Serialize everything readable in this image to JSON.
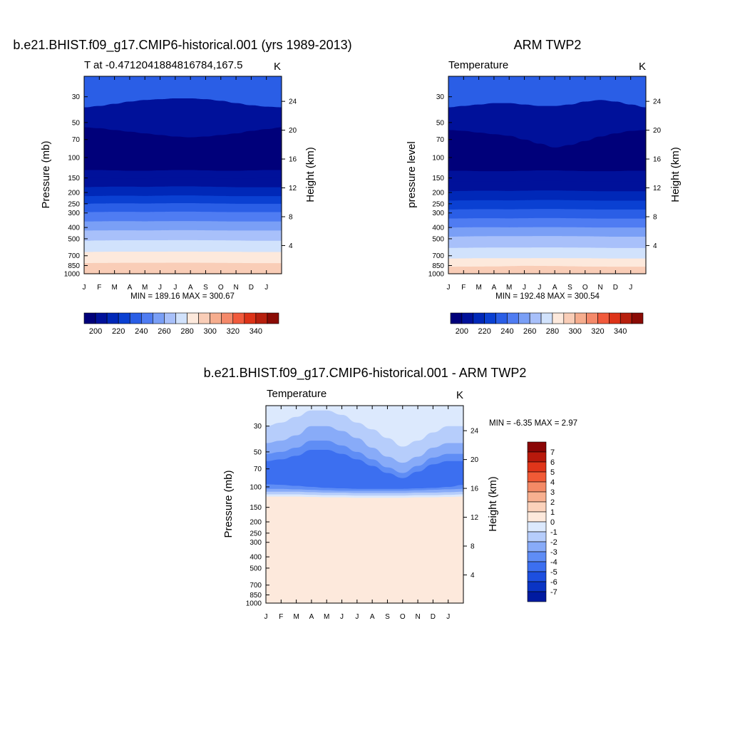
{
  "figure_title": "",
  "chart_data": [
    {
      "id": "model",
      "type": "contour",
      "title": "b.e21.BHIST.f09_g17.CMIP6-historical.001 (yrs 1989-2013)",
      "left_subtitle": "T at -0.4712041884816784,167.5",
      "right_subtitle": "K",
      "ylabel": "Pressure (mb)",
      "y2label": "Height (km)",
      "x_tick_labels": [
        "J",
        "F",
        "M",
        "A",
        "M",
        "J",
        "J",
        "A",
        "S",
        "O",
        "N",
        "D",
        "J"
      ],
      "y_ticks": [
        30,
        50,
        70,
        100,
        150,
        200,
        250,
        300,
        400,
        500,
        700,
        850,
        1000
      ],
      "y2_ticks": [
        24,
        20,
        16,
        12,
        8,
        4
      ],
      "ylim": [
        1000,
        20
      ],
      "stats": "MIN = 189.16 MAX = 300.67",
      "levels": [
        195,
        200,
        205,
        210,
        215,
        220,
        225,
        230,
        235,
        240,
        245,
        250,
        255,
        260,
        265,
        270,
        275,
        280,
        285,
        290,
        295,
        300,
        305,
        310,
        315,
        320,
        325,
        330,
        335,
        340,
        345
      ],
      "colorbar_labels": [
        "200",
        "220",
        "240",
        "260",
        "280",
        "300",
        "320",
        "340"
      ],
      "boundaries": [
        {
          "value": 235,
          "p": [
            24,
            24,
            23,
            22,
            22,
            21.5,
            21,
            21,
            21.5,
            22,
            22.5,
            23,
            23.5,
            24
          ]
        },
        {
          "value": 200,
          "p": [
            37,
            36,
            34.5,
            33,
            32,
            31.5,
            31,
            31,
            31.5,
            32.5,
            34,
            35.5,
            36.5,
            37
          ]
        },
        {
          "value": 195,
          "p": [
            55,
            56,
            58,
            60,
            62,
            64,
            66,
            67,
            66,
            64,
            62,
            59,
            57,
            55
          ]
        },
        {
          "value": 200,
          "p": [
            128,
            128,
            129,
            130,
            130,
            129,
            128,
            128,
            129,
            130,
            130,
            129,
            128,
            128
          ]
        },
        {
          "value": 205,
          "p": [
            150,
            150,
            151,
            152,
            152,
            150,
            149,
            149,
            150,
            151,
            152,
            151,
            150,
            150
          ]
        },
        {
          "value": 215,
          "p": [
            180,
            179,
            178,
            178,
            179,
            178,
            177,
            177,
            178,
            179,
            180,
            180,
            180,
            180
          ]
        },
        {
          "value": 225,
          "p": [
            215,
            214,
            213,
            213,
            214,
            213,
            212,
            212,
            213,
            214,
            215,
            215,
            215,
            215
          ]
        },
        {
          "value": 235,
          "p": [
            250,
            249,
            248,
            248,
            249,
            248,
            247,
            247,
            248,
            249,
            250,
            250,
            250,
            250
          ]
        },
        {
          "value": 245,
          "p": [
            295,
            294,
            293,
            293,
            294,
            293,
            292,
            292,
            293,
            294,
            295,
            295,
            295,
            295
          ]
        },
        {
          "value": 255,
          "p": [
            355,
            354,
            353,
            353,
            354,
            353,
            352,
            352,
            353,
            354,
            355,
            355,
            355,
            355
          ]
        },
        {
          "value": 265,
          "p": [
            425,
            424,
            423,
            423,
            424,
            423,
            422,
            422,
            423,
            424,
            425,
            425,
            425,
            425
          ]
        },
        {
          "value": 275,
          "p": [
            520,
            518,
            516,
            515,
            515,
            515,
            514,
            514,
            515,
            516,
            518,
            520,
            520,
            520
          ]
        },
        {
          "value": 285,
          "p": [
            650,
            648,
            646,
            645,
            645,
            645,
            644,
            644,
            645,
            646,
            648,
            650,
            650,
            650
          ]
        },
        {
          "value": 295,
          "p": [
            810,
            808,
            806,
            805,
            805,
            805,
            804,
            804,
            805,
            806,
            808,
            810,
            810,
            810
          ]
        },
        {
          "value": 300,
          "p": [
            990,
            990,
            990,
            990,
            990,
            990,
            990,
            990,
            990,
            990,
            990,
            990,
            990,
            990
          ]
        }
      ]
    },
    {
      "id": "obs",
      "type": "contour",
      "title": "ARM TWP2",
      "left_subtitle": "Temperature",
      "right_subtitle": "K",
      "ylabel": "pressure level",
      "y2label": "Height (km)",
      "x_tick_labels": [
        "J",
        "F",
        "M",
        "A",
        "M",
        "J",
        "J",
        "A",
        "S",
        "O",
        "N",
        "D",
        "J"
      ],
      "y_ticks": [
        30,
        50,
        70,
        100,
        150,
        200,
        250,
        300,
        400,
        500,
        700,
        850,
        1000
      ],
      "y2_ticks": [
        24,
        20,
        16,
        12,
        8,
        4
      ],
      "ylim": [
        1000,
        20
      ],
      "stats": "MIN = 192.48 MAX = 300.54",
      "levels": [
        195,
        200,
        205,
        210,
        215,
        220,
        225,
        230,
        235,
        240,
        245,
        250,
        255,
        260,
        265,
        270,
        275,
        280,
        285,
        290,
        295,
        300,
        305,
        310,
        315,
        320,
        325,
        330,
        335,
        340,
        345
      ],
      "colorbar_labels": [
        "200",
        "220",
        "240",
        "260",
        "280",
        "300",
        "320",
        "340"
      ],
      "boundaries": [
        {
          "value": 235,
          "p": [
            23,
            23,
            22.5,
            22,
            22,
            21.5,
            21,
            21,
            21.5,
            22,
            22.5,
            23,
            23,
            23
          ]
        },
        {
          "value": 200,
          "p": [
            37,
            36,
            35,
            34,
            34,
            35,
            36,
            36,
            35,
            33,
            32,
            33,
            35,
            37
          ]
        },
        {
          "value": 195,
          "p": [
            58,
            59,
            61,
            63,
            65,
            70,
            76,
            82,
            78,
            72,
            66,
            62,
            59,
            58
          ]
        },
        {
          "value": 200,
          "p": [
            130,
            130,
            131,
            131,
            131,
            130,
            129,
            129,
            130,
            131,
            131,
            131,
            130,
            130
          ]
        },
        {
          "value": 205,
          "p": [
            160,
            160,
            161,
            161,
            161,
            160,
            159,
            159,
            160,
            161,
            161,
            161,
            160,
            160
          ]
        },
        {
          "value": 215,
          "p": [
            195,
            194,
            193,
            193,
            194,
            193,
            192,
            192,
            193,
            194,
            195,
            195,
            195,
            195
          ]
        },
        {
          "value": 225,
          "p": [
            235,
            234,
            233,
            233,
            234,
            233,
            232,
            232,
            233,
            234,
            235,
            235,
            235,
            235
          ]
        },
        {
          "value": 235,
          "p": [
            280,
            279,
            278,
            278,
            279,
            278,
            277,
            277,
            278,
            279,
            280,
            280,
            280,
            280
          ]
        },
        {
          "value": 245,
          "p": [
            335,
            334,
            333,
            333,
            334,
            333,
            332,
            332,
            333,
            334,
            335,
            335,
            335,
            335
          ]
        },
        {
          "value": 255,
          "p": [
            400,
            399,
            398,
            398,
            399,
            398,
            397,
            397,
            398,
            399,
            400,
            400,
            400,
            400
          ]
        },
        {
          "value": 265,
          "p": [
            480,
            478,
            476,
            475,
            475,
            475,
            474,
            474,
            475,
            476,
            478,
            480,
            480,
            480
          ]
        },
        {
          "value": 275,
          "p": [
            600,
            598,
            596,
            595,
            595,
            595,
            594,
            594,
            595,
            596,
            598,
            600,
            600,
            600
          ]
        },
        {
          "value": 285,
          "p": [
            740,
            738,
            736,
            735,
            735,
            735,
            734,
            734,
            735,
            736,
            738,
            740,
            740,
            740
          ]
        },
        {
          "value": 290,
          "p": [
            870,
            868,
            866,
            865,
            860,
            855,
            856,
            858,
            862,
            866,
            868,
            870,
            870,
            870
          ]
        }
      ]
    },
    {
      "id": "diff",
      "type": "contour",
      "title": "b.e21.BHIST.f09_g17.CMIP6-historical.001 - ARM TWP2",
      "left_subtitle": "Temperature",
      "right_subtitle": "K",
      "ylabel": "Pressure (mb)",
      "y2label": "Height (km)",
      "x_tick_labels": [
        "J",
        "F",
        "M",
        "A",
        "M",
        "J",
        "J",
        "A",
        "S",
        "O",
        "N",
        "D",
        "J"
      ],
      "y_ticks": [
        30,
        50,
        70,
        100,
        150,
        200,
        250,
        300,
        400,
        500,
        700,
        850,
        1000
      ],
      "y2_ticks": [
        24,
        20,
        16,
        12,
        8,
        4
      ],
      "ylim": [
        1000,
        20
      ],
      "stats": "MIN =  -6.35 MAX =   2.97",
      "levels": [
        -7.5,
        -6.5,
        -5.5,
        -4.5,
        -3.5,
        -2.5,
        -1.5,
        -0.5,
        0.5,
        1.5,
        2.5,
        3.5,
        4.5,
        5.5,
        6.5,
        7.5
      ],
      "colorbar_labels": [
        "7",
        "6",
        "5",
        "4",
        "3",
        "2",
        "1",
        "0",
        "-1",
        "-2",
        "-3",
        "-4",
        "-5",
        "-6",
        "-7"
      ],
      "boundaries": [
        {
          "value": 0.5,
          "p": [
            20,
            20,
            20,
            20,
            20,
            20,
            20,
            20,
            20,
            20,
            20,
            20,
            20,
            20
          ]
        },
        {
          "value": 0,
          "p": [
            20,
            20,
            20,
            20,
            20,
            20,
            20,
            20,
            20,
            20,
            20,
            20,
            20,
            20
          ]
        },
        {
          "value": -1,
          "p": [
            30,
            28,
            25,
            22,
            22,
            24,
            28,
            32,
            38,
            45,
            40,
            34,
            30,
            30
          ]
        },
        {
          "value": -2,
          "p": [
            42,
            40,
            36,
            30,
            30,
            33,
            38,
            46,
            55,
            62,
            55,
            46,
            42,
            42
          ]
        },
        {
          "value": -3,
          "p": [
            52,
            50,
            46,
            40,
            40,
            44,
            50,
            58,
            68,
            76,
            66,
            56,
            52,
            52
          ]
        },
        {
          "value": -4,
          "p": [
            60,
            58,
            54,
            48,
            48,
            52,
            58,
            66,
            76,
            84,
            74,
            64,
            60,
            60
          ]
        },
        {
          "value": -3,
          "p": [
            95,
            96,
            98,
            100,
            102,
            103,
            104,
            104,
            104,
            104,
            103,
            102,
            100,
            96
          ]
        },
        {
          "value": -2,
          "p": [
            104,
            104,
            105,
            106,
            107,
            108,
            108,
            108,
            108,
            108,
            107,
            106,
            105,
            104
          ]
        },
        {
          "value": -1,
          "p": [
            110,
            110,
            110,
            111,
            112,
            112,
            113,
            113,
            113,
            113,
            112,
            112,
            111,
            110
          ]
        },
        {
          "value": 0,
          "p": [
            116,
            116,
            116,
            117,
            118,
            118,
            119,
            119,
            119,
            119,
            118,
            118,
            117,
            116
          ]
        },
        {
          "value": 1,
          "p": [
            121,
            121,
            121,
            122,
            123,
            123,
            124,
            124,
            124,
            124,
            123,
            123,
            122,
            121
          ]
        },
        {
          "value": 2,
          "p": [
            1000,
            1000,
            1000,
            1000,
            1000,
            1000,
            1000,
            1000,
            1000,
            1000,
            1000,
            1000,
            1000,
            1000
          ]
        }
      ]
    }
  ]
}
